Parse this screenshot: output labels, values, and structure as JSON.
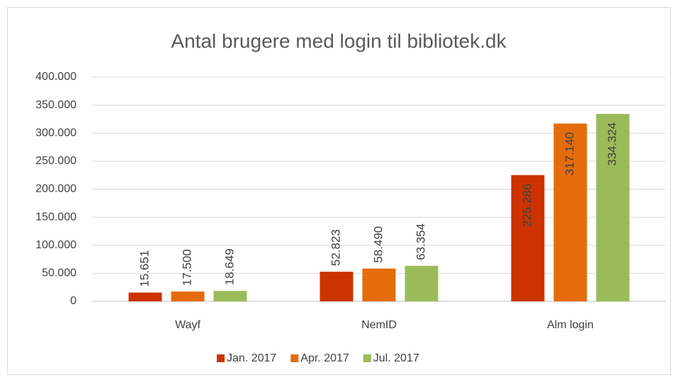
{
  "chart_data": {
    "type": "bar",
    "title": "Antal brugere med login til bibliotek.dk",
    "categories": [
      "Wayf",
      "NemID",
      "Alm login"
    ],
    "series": [
      {
        "name": "Jan. 2017",
        "color": "#cc3300",
        "values": [
          15651,
          52823,
          225286
        ],
        "value_labels": [
          "15.651",
          "52.823",
          "225.286"
        ]
      },
      {
        "name": "Apr. 2017",
        "color": "#e46c0a",
        "values": [
          17500,
          58490,
          317140
        ],
        "value_labels": [
          "17.500",
          "58.490",
          "317.140"
        ]
      },
      {
        "name": "Jul. 2017",
        "color": "#9bbb59",
        "values": [
          18649,
          63354,
          334324
        ],
        "value_labels": [
          "18.649",
          "63.354",
          "334.324"
        ]
      }
    ],
    "ylim": [
      0,
      400000
    ],
    "yticks": [
      0,
      {
        "value": 50000,
        "label": "50.000"
      },
      {
        "value": 100000,
        "label": "100.000"
      },
      {
        "value": 150000,
        "label": "150.000"
      },
      {
        "value": 200000,
        "label": "200.000"
      },
      {
        "value": 250000,
        "label": "250.000"
      },
      {
        "value": 300000,
        "label": "300.000"
      },
      {
        "value": 350000,
        "label": "350.000"
      },
      {
        "value": 400000,
        "label": "400.000"
      }
    ],
    "grid": true,
    "legend": "bottom"
  }
}
